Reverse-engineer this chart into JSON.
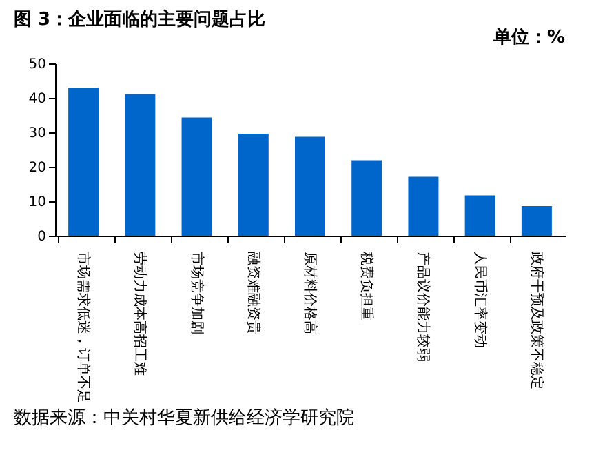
{
  "chart_data": {
    "type": "bar",
    "title": "图 3：企业面临的主要问题占比",
    "subtitle": "单位：%",
    "categories": [
      "市场需求低迷，订单不足",
      "劳动力成本高招工难",
      "市场竞争加剧",
      "融资难融资贵",
      "原材料价格高",
      "税费负担重",
      "产品议价能力较弱",
      "人民币汇率变动",
      "政府干预及政策不稳定"
    ],
    "values": [
      42.9,
      41.1,
      34.3,
      29.6,
      28.7,
      21.9,
      17.1,
      11.7,
      8.6
    ],
    "color": "#0066cc",
    "ylim": [
      0,
      50
    ],
    "yticks": [
      0,
      10,
      20,
      30,
      40,
      50
    ],
    "grid": false,
    "annotations": [
      "数据来源：中关村华夏新供给经济学研究院"
    ]
  }
}
